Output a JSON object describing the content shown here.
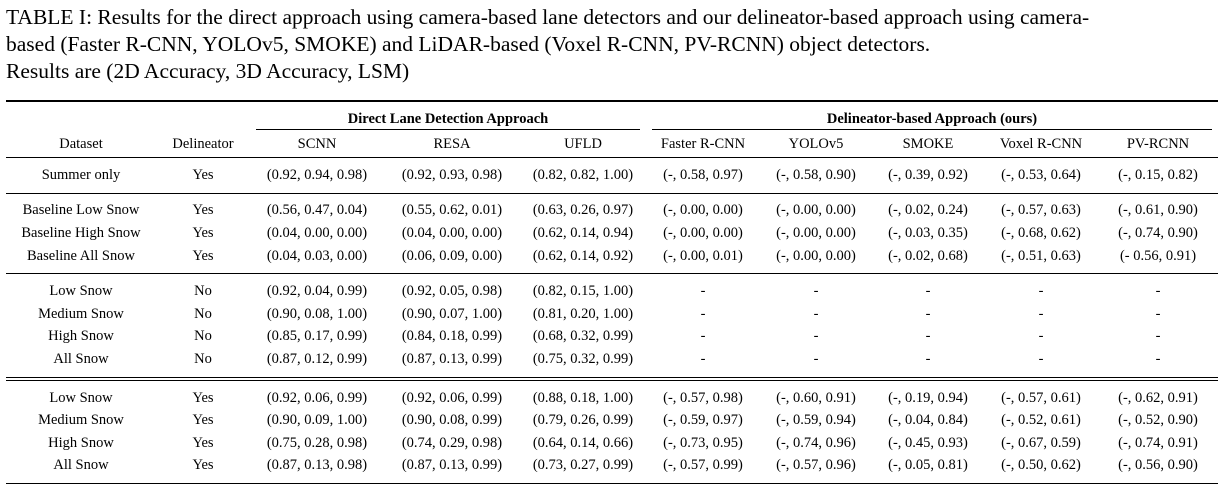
{
  "caption": {
    "line1": "TABLE I: Results for the direct approach using camera-based lane detectors and our delineator-based approach using camera-",
    "line2": "based (Faster R-CNN, YOLOv5, SMOKE) and LiDAR-based (Voxel R-CNN, PV-RCNN) object detectors.",
    "line3": "Results are (2D Accuracy, 3D Accuracy, LSM)"
  },
  "table": {
    "group_headers": {
      "direct": "Direct Lane Detection Approach",
      "delineator": "Delineator-based Approach (ours)"
    },
    "columns": [
      "Dataset",
      "Delineator",
      "SCNN",
      "RESA",
      "UFLD",
      "Faster R-CNN",
      "YOLOv5",
      "SMOKE",
      "Voxel R-CNN",
      "PV-RCNN"
    ],
    "sections": [
      {
        "rows": [
          [
            "Summer only",
            "Yes",
            "(0.92, 0.94, 0.98)",
            "(0.92, 0.93, 0.98)",
            "(0.82, 0.82, 1.00)",
            "(-, 0.58, 0.97)",
            "(-, 0.58, 0.90)",
            "(-, 0.39, 0.92)",
            "(-, 0.53, 0.64)",
            "(-, 0.15, 0.82)"
          ]
        ]
      },
      {
        "rows": [
          [
            "Baseline Low Snow",
            "Yes",
            "(0.56, 0.47, 0.04)",
            "(0.55, 0.62, 0.01)",
            "(0.63, 0.26, 0.97)",
            "(-, 0.00, 0.00)",
            "(-, 0.00, 0.00)",
            "(-, 0.02, 0.24)",
            "(-, 0.57, 0.63)",
            "(-, 0.61, 0.90)"
          ],
          [
            "Baseline High Snow",
            "Yes",
            "(0.04, 0.00, 0.00)",
            "(0.04, 0.00, 0.00)",
            "(0.62, 0.14, 0.94)",
            "(-, 0.00, 0.00)",
            "(-, 0.00, 0.00)",
            "(-, 0.03, 0.35)",
            "(-, 0.68, 0.62)",
            "(-, 0.74, 0.90)"
          ],
          [
            "Baseline All Snow",
            "Yes",
            "(0.04, 0.03, 0.00)",
            "(0.06, 0.09, 0.00)",
            "(0.62, 0.14, 0.92)",
            "(-, 0.00, 0.01)",
            "(-, 0.00, 0.00)",
            "(-, 0.02, 0.68)",
            "(-, 0.51, 0.63)",
            "(- 0.56, 0.91)"
          ]
        ]
      },
      {
        "rows": [
          [
            "Low Snow",
            "No",
            "(0.92, 0.04, 0.99)",
            "(0.92, 0.05, 0.98)",
            "(0.82, 0.15, 1.00)",
            "-",
            "-",
            "-",
            "-",
            "-"
          ],
          [
            "Medium Snow",
            "No",
            "(0.90, 0.08, 1.00)",
            "(0.90, 0.07, 1.00)",
            "(0.81, 0.20, 1.00)",
            "-",
            "-",
            "-",
            "-",
            "-"
          ],
          [
            "High Snow",
            "No",
            "(0.85, 0.17, 0.99)",
            "(0.84, 0.18, 0.99)",
            "(0.68, 0.32, 0.99)",
            "-",
            "-",
            "-",
            "-",
            "-"
          ],
          [
            "All Snow",
            "No",
            "(0.87, 0.12, 0.99)",
            "(0.87, 0.13, 0.99)",
            "(0.75, 0.32, 0.99)",
            "-",
            "-",
            "-",
            "-",
            "-"
          ]
        ]
      },
      {
        "rows": [
          [
            "Low Snow",
            "Yes",
            "(0.92, 0.06, 0.99)",
            "(0.92, 0.06, 0.99)",
            "(0.88, 0.18, 1.00)",
            "(-, 0.57, 0.98)",
            "(-, 0.60, 0.91)",
            "(-, 0.19, 0.94)",
            "(-, 0.57, 0.61)",
            "(-, 0.62, 0.91)"
          ],
          [
            "Medium Snow",
            "Yes",
            "(0.90, 0.09, 1.00)",
            "(0.90, 0.08, 0.99)",
            "(0.79, 0.26, 0.99)",
            "(-, 0.59, 0.97)",
            "(-, 0.59, 0.94)",
            "(-, 0.04, 0.84)",
            "(-, 0.52, 0.61)",
            "(-, 0.52, 0.90)"
          ],
          [
            "High Snow",
            "Yes",
            "(0.75, 0.28, 0.98)",
            "(0.74, 0.29, 0.98)",
            "(0.64, 0.14, 0.66)",
            "(-, 0.73, 0.95)",
            "(-, 0.74, 0.96)",
            "(-, 0.45, 0.93)",
            "(-, 0.67, 0.59)",
            "(-, 0.74, 0.91)"
          ],
          [
            "All Snow",
            "Yes",
            "(0.87, 0.13, 0.98)",
            "(0.87, 0.13, 0.99)",
            "(0.73, 0.27, 0.99)",
            "(-, 0.57, 0.99)",
            "(-, 0.57, 0.96)",
            "(-, 0.05, 0.81)",
            "(-, 0.50, 0.62)",
            "(-, 0.56, 0.90)"
          ]
        ]
      }
    ]
  }
}
